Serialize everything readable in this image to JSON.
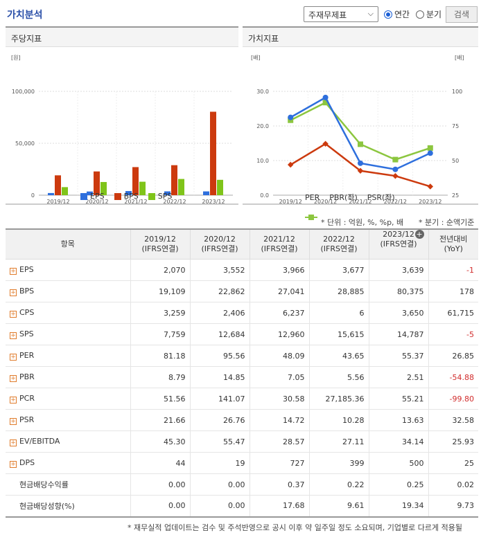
{
  "header": {
    "title": "가치분석",
    "select_value": "주재무제표",
    "radio_annual": "연간",
    "radio_quarter": "분기",
    "search_label": "검색"
  },
  "left_panel": {
    "title": "주당지표"
  },
  "right_panel": {
    "title": "가치지표"
  },
  "colors": {
    "eps": "#2e6fdd",
    "bps": "#cc3a0e",
    "sps": "#7fc41a",
    "per": "#2e6fdd",
    "pbr": "#cc3a0e",
    "psr": "#8cc63f"
  },
  "chart_data": [
    {
      "type": "bar",
      "title": "",
      "unit": "[원]",
      "categories": [
        "2019/12",
        "2020/12",
        "2021/12",
        "2022/12",
        "2023/12"
      ],
      "series": [
        {
          "name": "EPS",
          "values": [
            2070,
            3552,
            3966,
            3677,
            3639
          ]
        },
        {
          "name": "BPS",
          "values": [
            19109,
            22862,
            27041,
            28885,
            80375
          ]
        },
        {
          "name": "SPS",
          "values": [
            7759,
            12684,
            12960,
            15615,
            14787
          ]
        }
      ],
      "ylim": [
        0,
        100000
      ],
      "yticks": [
        "0",
        "50,000",
        "100,000"
      ],
      "legend": "bottom"
    },
    {
      "type": "line",
      "title": "",
      "unit_left": "[배]",
      "unit_right": "[배]",
      "categories": [
        "2019/12",
        "2020/12",
        "2021/12",
        "2022/12",
        "2023/12"
      ],
      "series": [
        {
          "name": "PER",
          "axis": "right",
          "values": [
            81.18,
            95.56,
            48.09,
            43.65,
            55.37
          ]
        },
        {
          "name": "PBR(좌)",
          "axis": "left",
          "values": [
            8.79,
            14.85,
            7.05,
            5.56,
            2.51
          ]
        },
        {
          "name": "PSR(좌)",
          "axis": "left",
          "values": [
            21.66,
            26.76,
            14.72,
            10.28,
            13.63
          ]
        }
      ],
      "ylim_left": [
        0,
        30
      ],
      "yticks_left": [
        "0.0",
        "10.0",
        "20.0",
        "30.0"
      ],
      "ylim_right": [
        25,
        100
      ],
      "yticks_right": [
        "25",
        "50",
        "75",
        "100"
      ],
      "legend": "bottom"
    }
  ],
  "notes": {
    "unit": "* 단위 : 억원, %, %p, 배",
    "quarter": "* 분기 : 순액기준"
  },
  "table": {
    "headers": [
      {
        "l1": "항목",
        "l2": ""
      },
      {
        "l1": "2019/12",
        "l2": "(IFRS연결)"
      },
      {
        "l1": "2020/12",
        "l2": "(IFRS연결)"
      },
      {
        "l1": "2021/12",
        "l2": "(IFRS연결)"
      },
      {
        "l1": "2022/12",
        "l2": "(IFRS연결)"
      },
      {
        "l1": "2023/12",
        "l2": "(IFRS연결)"
      },
      {
        "l1": "전년대비",
        "l2": "(YoY)"
      }
    ],
    "rows": [
      {
        "label": "EPS",
        "expand": true,
        "values": [
          "2,070",
          "3,552",
          "3,966",
          "3,677",
          "3,639"
        ],
        "yoy": "-1",
        "neg": true
      },
      {
        "label": "BPS",
        "expand": true,
        "values": [
          "19,109",
          "22,862",
          "27,041",
          "28,885",
          "80,375"
        ],
        "yoy": "178",
        "neg": false
      },
      {
        "label": "CPS",
        "expand": true,
        "values": [
          "3,259",
          "2,406",
          "6,237",
          "6",
          "3,650"
        ],
        "yoy": "61,715",
        "neg": false
      },
      {
        "label": "SPS",
        "expand": true,
        "values": [
          "7,759",
          "12,684",
          "12,960",
          "15,615",
          "14,787"
        ],
        "yoy": "-5",
        "neg": true
      },
      {
        "label": "PER",
        "expand": true,
        "values": [
          "81.18",
          "95.56",
          "48.09",
          "43.65",
          "55.37"
        ],
        "yoy": "26.85",
        "neg": false
      },
      {
        "label": "PBR",
        "expand": true,
        "values": [
          "8.79",
          "14.85",
          "7.05",
          "5.56",
          "2.51"
        ],
        "yoy": "-54.88",
        "neg": true
      },
      {
        "label": "PCR",
        "expand": true,
        "values": [
          "51.56",
          "141.07",
          "30.58",
          "27,185.36",
          "55.21"
        ],
        "yoy": "-99.80",
        "neg": true
      },
      {
        "label": "PSR",
        "expand": true,
        "values": [
          "21.66",
          "26.76",
          "14.72",
          "10.28",
          "13.63"
        ],
        "yoy": "32.58",
        "neg": false
      },
      {
        "label": "EV/EBITDA",
        "expand": true,
        "values": [
          "45.30",
          "55.47",
          "28.57",
          "27.11",
          "34.14"
        ],
        "yoy": "25.93",
        "neg": false
      },
      {
        "label": "DPS",
        "expand": true,
        "values": [
          "44",
          "19",
          "727",
          "399",
          "500"
        ],
        "yoy": "25",
        "neg": false
      },
      {
        "label": "현금배당수익률",
        "expand": false,
        "values": [
          "0.00",
          "0.00",
          "0.37",
          "0.22",
          "0.25"
        ],
        "yoy": "0.02",
        "neg": false
      },
      {
        "label": "현금배당성향(%)",
        "expand": false,
        "values": [
          "0.00",
          "0.00",
          "17.68",
          "9.61",
          "19.34"
        ],
        "yoy": "9.73",
        "neg": false
      }
    ]
  },
  "footnote": "* 재무실적 업데이트는 검수 및 주석반영으로 공시 이후 약 일주일 정도 소요되며, 기업별로 다르게 적용될"
}
